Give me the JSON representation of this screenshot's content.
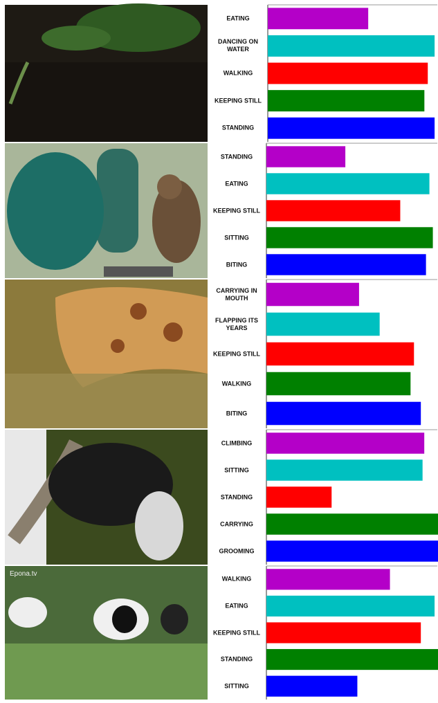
{
  "chart_data": [
    {
      "type": "barh",
      "categories": [
        "EATING",
        "DANCING ON WATER",
        "WALKING",
        "KEEPING STILL",
        "STANDING"
      ],
      "values": [
        0.59,
        0.98,
        0.94,
        0.92,
        0.98
      ],
      "colors": [
        "#b400c8",
        "#00c0c0",
        "#ff0000",
        "#008000",
        "#0000ff"
      ],
      "xlim": [
        0,
        1
      ]
    },
    {
      "type": "barh",
      "categories": [
        "STANDING",
        "EATING",
        "KEEPING STILL",
        "SITTING",
        "BITING"
      ],
      "values": [
        0.46,
        0.95,
        0.78,
        0.97,
        0.93
      ],
      "colors": [
        "#b400c8",
        "#00c0c0",
        "#ff0000",
        "#008000",
        "#0000ff"
      ],
      "xlim": [
        0,
        1
      ]
    },
    {
      "type": "barh",
      "categories": [
        "CARRYING IN MOUTH",
        "FLAPPING ITS YEARS",
        "KEEPING STILL",
        "WALKING",
        "BITING"
      ],
      "values": [
        0.54,
        0.66,
        0.86,
        0.84,
        0.9
      ],
      "colors": [
        "#b400c8",
        "#00c0c0",
        "#ff0000",
        "#008000",
        "#0000ff"
      ],
      "xlim": [
        0,
        1
      ]
    },
    {
      "type": "barh",
      "categories": [
        "CLIMBING",
        "SITTING",
        "STANDING",
        "CARRYING",
        "GROOMING"
      ],
      "values": [
        0.92,
        0.91,
        0.38,
        1.0,
        1.0
      ],
      "colors": [
        "#b400c8",
        "#00c0c0",
        "#ff0000",
        "#008000",
        "#0000ff"
      ],
      "xlim": [
        0,
        1
      ]
    },
    {
      "type": "barh",
      "categories": [
        "WALKING",
        "EATING",
        "KEEPING STILL",
        "STANDING",
        "SITTING"
      ],
      "values": [
        0.72,
        0.98,
        0.9,
        1.0,
        0.53
      ],
      "colors": [
        "#b400c8",
        "#00c0c0",
        "#ff0000",
        "#008000",
        "#0000ff"
      ],
      "xlim": [
        0,
        1
      ]
    }
  ],
  "watermark": "Epona.tv"
}
